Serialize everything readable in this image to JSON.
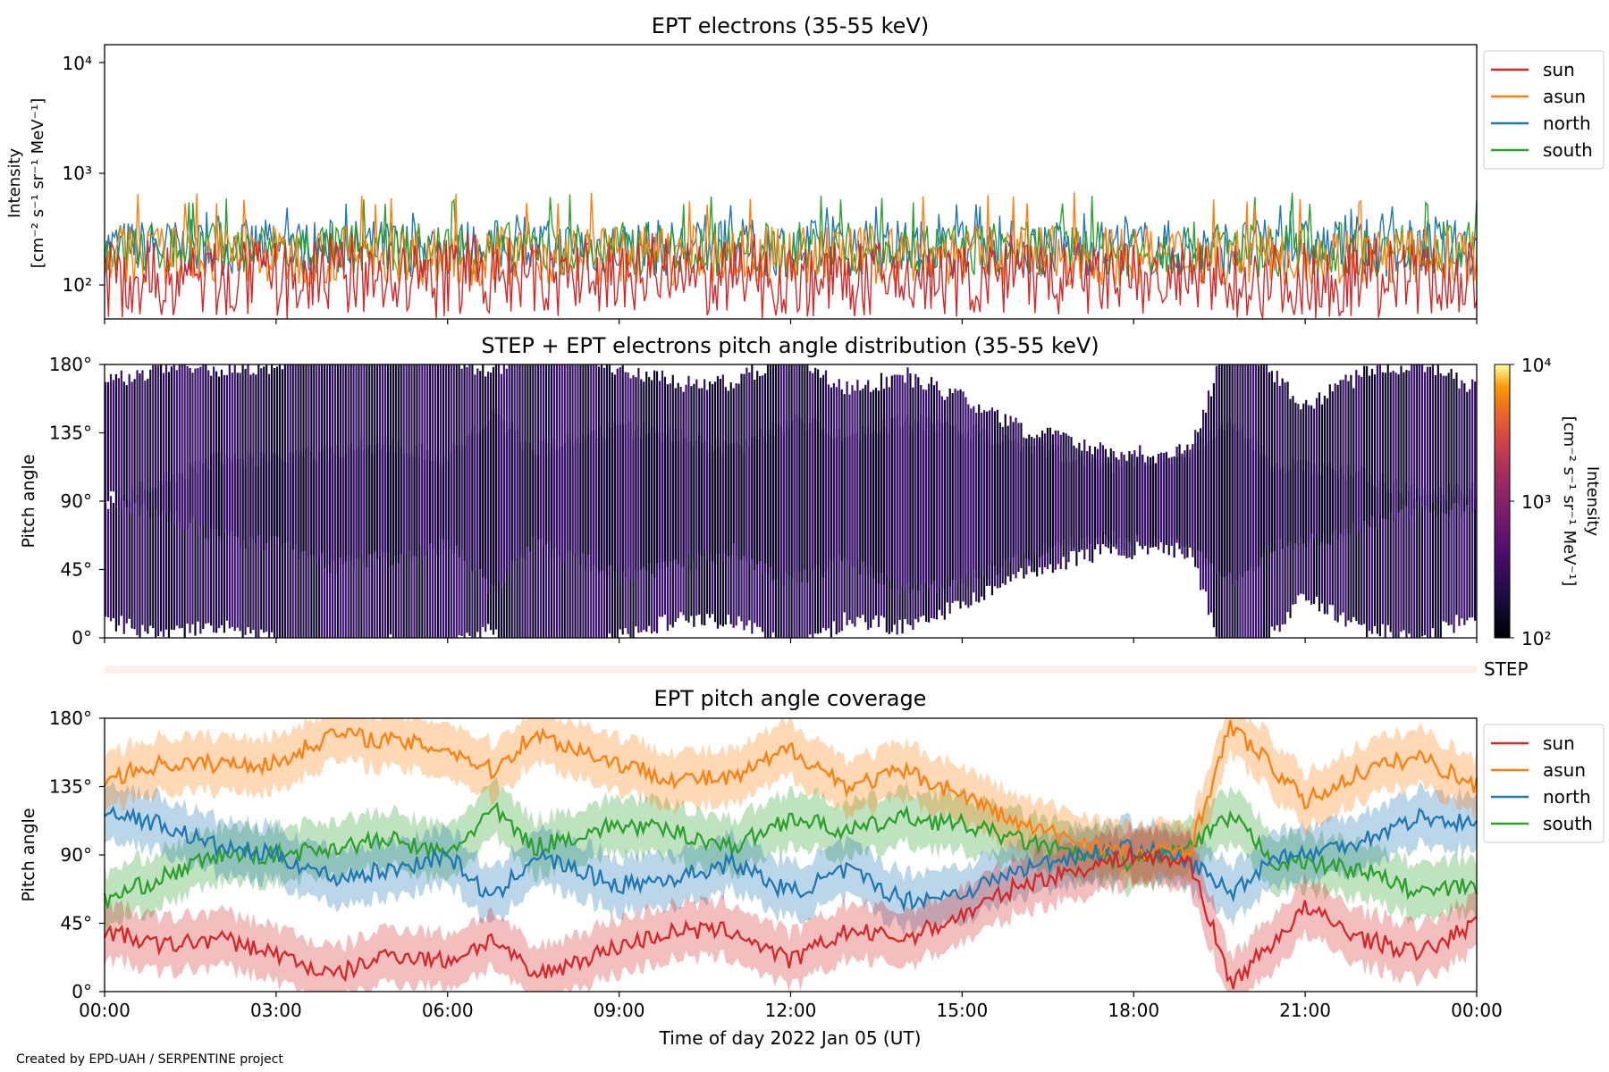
{
  "footer": "Created by EPD-UAH / SERPENTINE project",
  "colors": {
    "sun": "#d62728",
    "asun": "#ff7f0e",
    "north": "#1f77b4",
    "south": "#2ca02c",
    "pad_low": "#0d0829",
    "pad_high": "#3b0f70"
  },
  "chart_data": [
    {
      "type": "line",
      "title": "EPT electrons (35-55 keV)",
      "ylabel_line1": "Intensity",
      "ylabel_line2": "[cm⁻² s⁻¹ sr⁻¹ MeV⁻¹]",
      "yscale": "log",
      "ylim": [
        50,
        15000
      ],
      "yticks": [
        "10²",
        "10³",
        "10⁴"
      ],
      "xlim_hours": [
        0,
        24
      ],
      "legend": {
        "placement": "outside-right-top",
        "entries": [
          "sun",
          "asun",
          "north",
          "south"
        ]
      },
      "series": [
        {
          "name": "sun",
          "color": "#d62728",
          "typical_range": [
            50,
            250
          ],
          "peak": 300
        },
        {
          "name": "asun",
          "color": "#ff7f0e",
          "typical_range": [
            100,
            350
          ],
          "peak": 700
        },
        {
          "name": "north",
          "color": "#1f77b4",
          "typical_range": [
            120,
            400
          ],
          "peak": 550
        },
        {
          "name": "south",
          "color": "#2ca02c",
          "typical_range": [
            120,
            380
          ],
          "peak": 700
        }
      ]
    },
    {
      "type": "heatmap",
      "title": "STEP + EPT electrons pitch angle distribution (35-55 keV)",
      "ylabel": "Pitch angle",
      "yticks": [
        "0°",
        "45°",
        "90°",
        "135°",
        "180°"
      ],
      "ylim": [
        0,
        180
      ],
      "colorbar": {
        "label_line1": "Intensity",
        "label_line2": "[cm⁻² s⁻¹ sr⁻¹ MeV⁻¹]",
        "ticks": [
          "10²",
          "10³",
          "10⁴"
        ],
        "scale": "log",
        "range": [
          100,
          10000
        ]
      },
      "step_label": "STEP"
    },
    {
      "type": "line",
      "title": "EPT pitch angle coverage",
      "ylabel": "Pitch angle",
      "xlabel": "Time of day 2022 Jan 05 (UT)",
      "xticks": [
        "00:00",
        "03:00",
        "06:00",
        "09:00",
        "12:00",
        "15:00",
        "18:00",
        "21:00",
        "00:00"
      ],
      "yticks": [
        "0°",
        "45°",
        "90°",
        "135°",
        "180°"
      ],
      "ylim": [
        0,
        180
      ],
      "legend": {
        "placement": "outside-right-top",
        "entries": [
          "sun",
          "asun",
          "north",
          "south"
        ]
      },
      "x_hours": [
        0,
        1,
        2,
        3,
        4,
        5,
        6,
        6.8,
        7.5,
        9,
        10,
        11,
        12,
        13,
        14,
        15,
        16,
        17,
        18,
        19,
        19.7,
        20.5,
        21,
        22,
        23,
        24
      ],
      "series": [
        {
          "name": "sun",
          "color": "#d62728",
          "values": [
            40,
            30,
            35,
            25,
            10,
            25,
            20,
            35,
            10,
            30,
            40,
            40,
            20,
            40,
            35,
            50,
            70,
            80,
            90,
            85,
            5,
            35,
            55,
            35,
            25,
            45
          ]
        },
        {
          "name": "asun",
          "color": "#ff7f0e",
          "values": [
            140,
            150,
            150,
            150,
            170,
            165,
            160,
            145,
            170,
            150,
            140,
            140,
            160,
            135,
            145,
            130,
            110,
            100,
            90,
            95,
            175,
            145,
            125,
            145,
            155,
            135
          ]
        },
        {
          "name": "north",
          "color": "#1f77b4",
          "values": [
            120,
            110,
            95,
            90,
            75,
            80,
            90,
            60,
            90,
            70,
            75,
            85,
            65,
            80,
            60,
            65,
            80,
            90,
            95,
            85,
            65,
            90,
            90,
            100,
            115,
            110
          ]
        },
        {
          "name": "south",
          "color": "#2ca02c",
          "values": [
            60,
            75,
            90,
            90,
            95,
            100,
            90,
            120,
            95,
            110,
            105,
            95,
            115,
            105,
            115,
            110,
            100,
            90,
            85,
            95,
            115,
            85,
            85,
            80,
            65,
            70
          ]
        }
      ]
    }
  ]
}
